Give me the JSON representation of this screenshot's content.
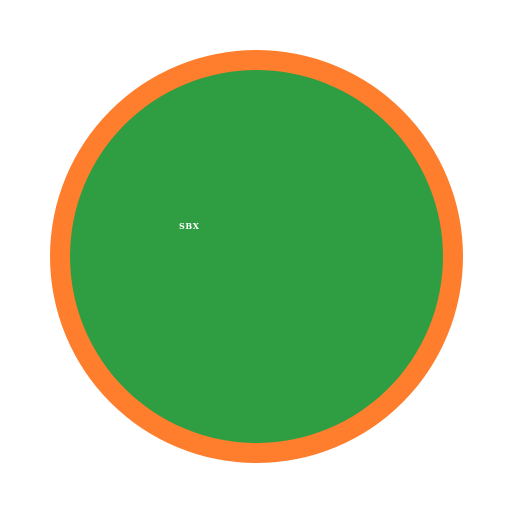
{
  "badge": {
    "label": "SBX",
    "ring_color": "#fe7e2d",
    "fill_color": "#2f9e43",
    "label_color": "#ffffff",
    "background_color": "#ffffff"
  }
}
